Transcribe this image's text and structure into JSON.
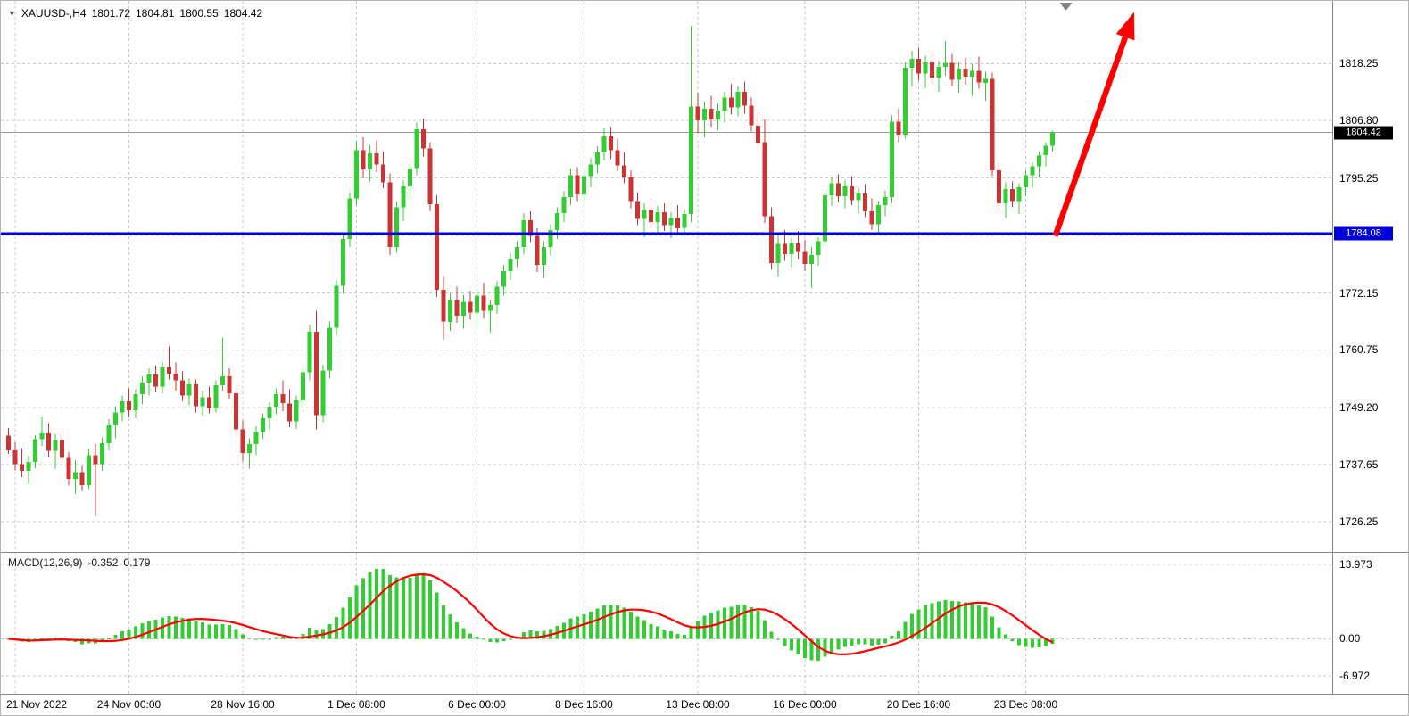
{
  "header": {
    "dropdown_glyph": "▼",
    "symbol_period": "XAUUSD-,H4",
    "open": "1801.72",
    "high": "1804.81",
    "low": "1800.55",
    "close": "1804.42"
  },
  "indicator_panel": {
    "label": "MACD(12,26,9)",
    "main_value": "-0.352",
    "signal_value": "0.179"
  },
  "colors": {
    "bull": "#32CD32",
    "bear": "#cc3333",
    "grid": "#c8c8c8",
    "separator": "#888888",
    "hline": "#0000dd",
    "signal": "#ff0000",
    "histogram": "#32CD32",
    "bid_line": "#9a9a9a",
    "badge_current_bg": "#000000",
    "badge_hline_bg": "#0000dd",
    "shift_marker": "#808080",
    "text": "#000000"
  },
  "chart_data": {
    "type": "candlestick",
    "symbol": "XAUUSD",
    "timeframe": "H4",
    "title": "XAUUSD-,H4",
    "ylim": [
      1720.5,
      1829.4
    ],
    "price_grid": [
      1818.25,
      1806.8,
      1795.25,
      1783.7,
      1772.15,
      1760.75,
      1749.2,
      1737.65,
      1726.25
    ],
    "price_axis_ticks": [
      {
        "price": 1818.25,
        "label": "1818.25"
      },
      {
        "price": 1806.8,
        "label": "1806.80"
      },
      {
        "price": 1795.25,
        "label": "1795.25"
      },
      {
        "price": 1772.15,
        "label": "1772.15"
      },
      {
        "price": 1760.75,
        "label": "1760.75"
      },
      {
        "price": 1749.2,
        "label": "1749.20"
      },
      {
        "price": 1737.65,
        "label": "1737.65"
      },
      {
        "price": 1726.25,
        "label": "1726.25"
      }
    ],
    "time_ticks": [
      {
        "bar": 1,
        "label": "21 Nov 2022",
        "align": "left"
      },
      {
        "bar": 18,
        "label": "24 Nov 00:00"
      },
      {
        "bar": 35,
        "label": "28 Nov 16:00"
      },
      {
        "bar": 52,
        "label": "1 Dec 08:00"
      },
      {
        "bar": 70,
        "label": "6 Dec 00:00"
      },
      {
        "bar": 86,
        "label": "8 Dec 16:00"
      },
      {
        "bar": 103,
        "label": "13 Dec 08:00"
      },
      {
        "bar": 119,
        "label": "16 Dec 00:00"
      },
      {
        "bar": 136,
        "label": "20 Dec 16:00"
      },
      {
        "bar": 152,
        "label": "23 Dec 08:00"
      }
    ],
    "current_price": {
      "price": 1804.42,
      "label": "1804.42"
    },
    "hline": {
      "price": 1784.08,
      "label": "1784.08"
    },
    "macd": {
      "params": "12,26,9",
      "display_main": -0.352,
      "display_signal": 0.179,
      "axis_ticks": [
        {
          "value": 13.973,
          "label": "13.973"
        },
        {
          "value": 0,
          "label": "0.00"
        },
        {
          "value": -6.972,
          "label": "-6.972"
        }
      ],
      "ylim": [
        -9.8,
        15.9
      ]
    },
    "annotations": {
      "arrow": {
        "type": "up-arrow",
        "color": "#ff0000",
        "from": {
          "bar": 156.4,
          "price": 1783.6
        },
        "to": {
          "bar": 168.2,
          "price": 1828.6
        }
      },
      "shift_marker": {
        "bar": 158
      }
    },
    "candles": [
      [
        1743.5,
        1745.0,
        1739.8,
        1740.6
      ],
      [
        1740.6,
        1742.2,
        1736.5,
        1737.8
      ],
      [
        1737.8,
        1741.0,
        1735.2,
        1736.4
      ],
      [
        1736.4,
        1739.5,
        1733.8,
        1738.2
      ],
      [
        1738.2,
        1743.6,
        1737.0,
        1742.8
      ],
      [
        1742.8,
        1747.2,
        1741.5,
        1744.0
      ],
      [
        1744.0,
        1746.0,
        1739.2,
        1740.5
      ],
      [
        1740.5,
        1743.8,
        1736.8,
        1742.6
      ],
      [
        1742.6,
        1744.4,
        1738.0,
        1739.0
      ],
      [
        1739.0,
        1740.2,
        1733.5,
        1734.8
      ],
      [
        1734.8,
        1738.6,
        1731.9,
        1736.2
      ],
      [
        1736.2,
        1737.4,
        1732.4,
        1733.6
      ],
      [
        1733.6,
        1740.8,
        1732.8,
        1739.6
      ],
      [
        1739.6,
        1741.9,
        1727.4,
        1737.8
      ],
      [
        1737.8,
        1743.2,
        1736.4,
        1742.0
      ],
      [
        1742.0,
        1746.8,
        1740.6,
        1745.6
      ],
      [
        1745.6,
        1749.4,
        1743.0,
        1748.2
      ],
      [
        1748.2,
        1751.6,
        1746.4,
        1750.4
      ],
      [
        1750.4,
        1753.0,
        1747.2,
        1748.6
      ],
      [
        1748.6,
        1752.8,
        1747.0,
        1751.8
      ],
      [
        1751.8,
        1755.4,
        1749.8,
        1754.2
      ],
      [
        1754.2,
        1757.0,
        1751.6,
        1755.8
      ],
      [
        1755.8,
        1757.6,
        1752.2,
        1753.4
      ],
      [
        1753.4,
        1758.4,
        1752.0,
        1757.2
      ],
      [
        1757.2,
        1761.4,
        1754.8,
        1756.0
      ],
      [
        1756.0,
        1758.2,
        1752.6,
        1754.6
      ],
      [
        1754.6,
        1756.4,
        1750.4,
        1751.6
      ],
      [
        1751.6,
        1755.0,
        1749.6,
        1753.8
      ],
      [
        1753.8,
        1754.8,
        1748.2,
        1749.4
      ],
      [
        1749.4,
        1752.6,
        1747.4,
        1751.2
      ],
      [
        1751.2,
        1753.4,
        1748.0,
        1749.0
      ],
      [
        1749.0,
        1754.6,
        1748.2,
        1753.6
      ],
      [
        1753.6,
        1763.2,
        1752.4,
        1755.4
      ],
      [
        1755.4,
        1757.0,
        1750.8,
        1752.0
      ],
      [
        1752.0,
        1753.2,
        1743.6,
        1744.8
      ],
      [
        1744.8,
        1746.6,
        1738.4,
        1740.0
      ],
      [
        1740.0,
        1743.0,
        1736.9,
        1741.8
      ],
      [
        1741.8,
        1745.4,
        1739.6,
        1744.2
      ],
      [
        1744.2,
        1748.0,
        1742.8,
        1747.0
      ],
      [
        1747.0,
        1750.2,
        1744.6,
        1749.2
      ],
      [
        1749.2,
        1753.0,
        1747.8,
        1751.8
      ],
      [
        1751.8,
        1754.6,
        1748.4,
        1750.0
      ],
      [
        1750.0,
        1752.8,
        1745.2,
        1746.4
      ],
      [
        1746.4,
        1751.6,
        1744.9,
        1750.6
      ],
      [
        1750.6,
        1757.4,
        1749.2,
        1756.2
      ],
      [
        1756.2,
        1765.8,
        1754.6,
        1764.4
      ],
      [
        1764.4,
        1768.6,
        1744.8,
        1747.6
      ],
      [
        1747.6,
        1757.8,
        1746.2,
        1756.6
      ],
      [
        1756.6,
        1766.4,
        1755.0,
        1765.2
      ],
      [
        1765.2,
        1774.8,
        1763.6,
        1773.6
      ],
      [
        1773.6,
        1784.2,
        1772.0,
        1783.0
      ],
      [
        1783.0,
        1792.4,
        1781.4,
        1791.2
      ],
      [
        1791.2,
        1802.6,
        1789.8,
        1800.8
      ],
      [
        1800.8,
        1803.4,
        1795.2,
        1797.0
      ],
      [
        1797.0,
        1801.8,
        1794.6,
        1800.2
      ],
      [
        1800.2,
        1802.8,
        1796.4,
        1798.0
      ],
      [
        1798.0,
        1800.6,
        1793.2,
        1794.4
      ],
      [
        1794.4,
        1796.2,
        1779.8,
        1781.4
      ],
      [
        1781.4,
        1790.6,
        1780.2,
        1789.4
      ],
      [
        1789.4,
        1794.8,
        1786.6,
        1793.6
      ],
      [
        1793.6,
        1798.4,
        1791.2,
        1797.2
      ],
      [
        1797.2,
        1806.4,
        1795.8,
        1805.0
      ],
      [
        1805.0,
        1807.2,
        1799.6,
        1801.2
      ],
      [
        1801.2,
        1802.4,
        1788.6,
        1790.0
      ],
      [
        1790.0,
        1791.8,
        1771.4,
        1772.8
      ],
      [
        1772.8,
        1775.6,
        1762.9,
        1766.4
      ],
      [
        1766.4,
        1772.2,
        1764.6,
        1770.8
      ],
      [
        1770.8,
        1773.4,
        1766.2,
        1767.6
      ],
      [
        1767.6,
        1771.8,
        1765.0,
        1770.4
      ],
      [
        1770.4,
        1772.6,
        1766.8,
        1768.2
      ],
      [
        1768.2,
        1773.0,
        1765.4,
        1771.6
      ],
      [
        1771.6,
        1774.2,
        1767.0,
        1768.6
      ],
      [
        1768.6,
        1770.8,
        1764.2,
        1769.8
      ],
      [
        1769.8,
        1774.6,
        1768.0,
        1773.4
      ],
      [
        1773.4,
        1777.8,
        1771.6,
        1776.6
      ],
      [
        1776.6,
        1780.2,
        1774.8,
        1779.0
      ],
      [
        1779.0,
        1782.6,
        1777.2,
        1781.4
      ],
      [
        1781.4,
        1788.2,
        1780.0,
        1786.8
      ],
      [
        1786.8,
        1788.6,
        1782.4,
        1783.6
      ],
      [
        1783.6,
        1785.2,
        1776.4,
        1777.8
      ],
      [
        1777.8,
        1782.6,
        1775.2,
        1781.4
      ],
      [
        1781.4,
        1786.0,
        1779.6,
        1784.8
      ],
      [
        1784.8,
        1789.4,
        1783.0,
        1788.2
      ],
      [
        1788.2,
        1792.6,
        1786.4,
        1791.4
      ],
      [
        1791.4,
        1797.2,
        1789.8,
        1795.8
      ],
      [
        1795.8,
        1797.4,
        1790.6,
        1792.0
      ],
      [
        1792.0,
        1796.8,
        1790.2,
        1795.6
      ],
      [
        1795.6,
        1799.2,
        1793.4,
        1798.0
      ],
      [
        1798.0,
        1801.6,
        1796.2,
        1800.4
      ],
      [
        1800.4,
        1805.2,
        1798.8,
        1803.6
      ],
      [
        1803.6,
        1805.6,
        1799.0,
        1800.8
      ],
      [
        1800.8,
        1803.2,
        1796.6,
        1797.8
      ],
      [
        1797.8,
        1800.4,
        1794.2,
        1795.4
      ],
      [
        1795.4,
        1796.8,
        1789.2,
        1790.6
      ],
      [
        1790.6,
        1792.4,
        1785.8,
        1787.0
      ],
      [
        1787.0,
        1790.2,
        1783.4,
        1788.8
      ],
      [
        1788.8,
        1791.0,
        1785.2,
        1786.4
      ],
      [
        1786.4,
        1789.6,
        1783.8,
        1788.4
      ],
      [
        1788.4,
        1790.2,
        1784.6,
        1785.8
      ],
      [
        1785.8,
        1788.4,
        1783.2,
        1787.2
      ],
      [
        1787.2,
        1789.8,
        1784.0,
        1785.2
      ],
      [
        1785.2,
        1789.0,
        1783.6,
        1788.0
      ],
      [
        1788.0,
        1825.8,
        1786.4,
        1809.6
      ],
      [
        1809.6,
        1812.4,
        1804.2,
        1806.8
      ],
      [
        1806.8,
        1810.6,
        1803.4,
        1809.2
      ],
      [
        1809.2,
        1811.8,
        1805.6,
        1807.0
      ],
      [
        1807.0,
        1810.2,
        1804.8,
        1808.8
      ],
      [
        1808.8,
        1812.6,
        1806.4,
        1811.4
      ],
      [
        1811.4,
        1814.2,
        1808.0,
        1809.4
      ],
      [
        1809.4,
        1813.8,
        1807.6,
        1812.6
      ],
      [
        1812.6,
        1814.6,
        1808.2,
        1809.8
      ],
      [
        1809.8,
        1811.4,
        1804.6,
        1805.8
      ],
      [
        1805.8,
        1808.4,
        1801.2,
        1802.4
      ],
      [
        1802.4,
        1807.0,
        1786.2,
        1787.6
      ],
      [
        1787.6,
        1789.4,
        1776.8,
        1778.2
      ],
      [
        1778.2,
        1783.6,
        1775.4,
        1782.0
      ],
      [
        1782.0,
        1784.8,
        1778.6,
        1780.0
      ],
      [
        1780.0,
        1783.2,
        1777.2,
        1782.2
      ],
      [
        1782.2,
        1784.6,
        1779.0,
        1780.4
      ],
      [
        1780.4,
        1782.8,
        1776.6,
        1778.0
      ],
      [
        1778.0,
        1781.4,
        1773.2,
        1779.8
      ],
      [
        1779.8,
        1783.4,
        1777.6,
        1782.6
      ],
      [
        1782.6,
        1793.0,
        1781.2,
        1791.8
      ],
      [
        1791.8,
        1795.4,
        1789.6,
        1794.2
      ],
      [
        1794.2,
        1796.0,
        1790.4,
        1791.6
      ],
      [
        1791.6,
        1794.8,
        1789.2,
        1793.6
      ],
      [
        1793.6,
        1795.6,
        1789.8,
        1790.8
      ],
      [
        1790.8,
        1793.4,
        1788.0,
        1792.2
      ],
      [
        1792.2,
        1794.0,
        1787.4,
        1788.6
      ],
      [
        1788.6,
        1791.2,
        1784.8,
        1786.0
      ],
      [
        1786.0,
        1790.6,
        1784.2,
        1789.8
      ],
      [
        1789.8,
        1792.8,
        1787.6,
        1791.4
      ],
      [
        1791.4,
        1807.8,
        1790.2,
        1806.6
      ],
      [
        1806.6,
        1809.2,
        1802.4,
        1804.0
      ],
      [
        1804.0,
        1818.6,
        1803.2,
        1817.4
      ],
      [
        1817.4,
        1820.8,
        1813.6,
        1819.2
      ],
      [
        1819.2,
        1821.4,
        1814.8,
        1816.2
      ],
      [
        1816.2,
        1819.8,
        1813.4,
        1818.6
      ],
      [
        1818.6,
        1820.6,
        1814.2,
        1815.4
      ],
      [
        1815.4,
        1818.8,
        1812.6,
        1817.6
      ],
      [
        1817.6,
        1822.8,
        1815.8,
        1818.4
      ],
      [
        1818.4,
        1820.2,
        1813.8,
        1815.0
      ],
      [
        1815.0,
        1818.6,
        1812.4,
        1817.2
      ],
      [
        1817.2,
        1819.4,
        1814.0,
        1815.6
      ],
      [
        1815.6,
        1818.2,
        1811.8,
        1816.8
      ],
      [
        1816.8,
        1819.6,
        1813.2,
        1814.4
      ],
      [
        1814.4,
        1816.6,
        1810.8,
        1815.2
      ],
      [
        1815.2,
        1816.4,
        1795.6,
        1796.8
      ],
      [
        1796.8,
        1798.2,
        1788.6,
        1790.2
      ],
      [
        1790.2,
        1794.4,
        1787.2,
        1793.0
      ],
      [
        1793.0,
        1794.6,
        1789.4,
        1790.6
      ],
      [
        1790.6,
        1794.2,
        1788.0,
        1793.4
      ],
      [
        1793.4,
        1796.8,
        1791.6,
        1795.8
      ],
      [
        1795.8,
        1798.4,
        1793.2,
        1797.6
      ],
      [
        1797.6,
        1800.6,
        1795.4,
        1799.8
      ],
      [
        1799.8,
        1802.4,
        1797.6,
        1801.72
      ],
      [
        1801.72,
        1804.81,
        1800.55,
        1804.42
      ]
    ]
  }
}
